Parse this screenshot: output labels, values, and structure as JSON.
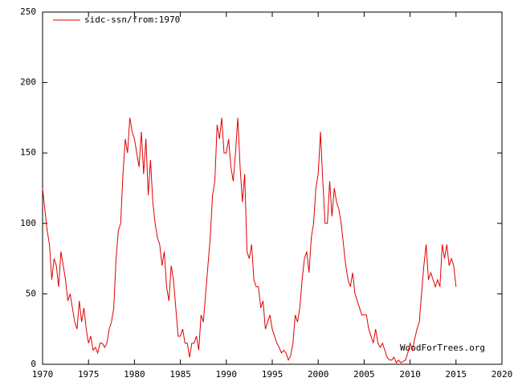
{
  "chart_data": {
    "type": "line",
    "annotation": "WoodForTrees.org",
    "x": [
      1970,
      1970.25,
      1970.5,
      1970.75,
      1971,
      1971.25,
      1971.5,
      1971.75,
      1972,
      1972.25,
      1972.5,
      1972.75,
      1973,
      1973.25,
      1973.5,
      1973.75,
      1974,
      1974.25,
      1974.5,
      1974.75,
      1975,
      1975.25,
      1975.5,
      1975.75,
      1976,
      1976.25,
      1976.5,
      1976.75,
      1977,
      1977.25,
      1977.5,
      1977.75,
      1978,
      1978.25,
      1978.5,
      1978.75,
      1979,
      1979.25,
      1979.5,
      1979.75,
      1980,
      1980.25,
      1980.5,
      1980.75,
      1981,
      1981.25,
      1981.5,
      1981.75,
      1982,
      1982.25,
      1982.5,
      1982.75,
      1983,
      1983.25,
      1983.5,
      1983.75,
      1984,
      1984.25,
      1984.5,
      1984.75,
      1985,
      1985.25,
      1985.5,
      1985.75,
      1986,
      1986.25,
      1986.5,
      1986.75,
      1987,
      1987.25,
      1987.5,
      1987.75,
      1988,
      1988.25,
      1988.5,
      1988.75,
      1989,
      1989.25,
      1989.5,
      1989.75,
      1990,
      1990.25,
      1990.5,
      1990.75,
      1991,
      1991.25,
      1991.5,
      1991.75,
      1992,
      1992.25,
      1992.5,
      1992.75,
      1993,
      1993.25,
      1993.5,
      1993.75,
      1994,
      1994.25,
      1994.5,
      1994.75,
      1995,
      1995.25,
      1995.5,
      1995.75,
      1996,
      1996.25,
      1996.5,
      1996.75,
      1997,
      1997.25,
      1997.5,
      1997.75,
      1998,
      1998.25,
      1998.5,
      1998.75,
      1999,
      1999.25,
      1999.5,
      1999.75,
      2000,
      2000.25,
      2000.5,
      2000.75,
      2001,
      2001.25,
      2001.5,
      2001.75,
      2002,
      2002.25,
      2002.5,
      2002.75,
      2003,
      2003.25,
      2003.5,
      2003.75,
      2004,
      2004.25,
      2004.5,
      2004.75,
      2005,
      2005.25,
      2005.5,
      2005.75,
      2006,
      2006.25,
      2006.5,
      2006.75,
      2007,
      2007.25,
      2007.5,
      2007.75,
      2008,
      2008.25,
      2008.5,
      2008.75,
      2009,
      2009.25,
      2009.5,
      2009.75,
      2010,
      2010.25,
      2010.5,
      2010.75,
      2011,
      2011.25,
      2011.5,
      2011.75,
      2012,
      2012.25,
      2012.5,
      2012.75,
      2013,
      2013.25,
      2013.5,
      2013.75,
      2014,
      2014.25,
      2014.5,
      2014.75,
      2015
    ],
    "series": [
      {
        "name": "sidc-ssn/from:1970",
        "color": "#e00000",
        "values": [
          125,
          110,
          95,
          85,
          60,
          75,
          70,
          55,
          80,
          70,
          60,
          45,
          50,
          40,
          30,
          25,
          45,
          30,
          40,
          25,
          15,
          20,
          10,
          12,
          8,
          15,
          15,
          12,
          15,
          25,
          30,
          40,
          75,
          95,
          100,
          135,
          160,
          150,
          175,
          165,
          160,
          150,
          140,
          165,
          135,
          160,
          120,
          145,
          115,
          100,
          90,
          85,
          70,
          80,
          55,
          45,
          70,
          60,
          40,
          20,
          20,
          25,
          15,
          15,
          5,
          15,
          15,
          20,
          10,
          35,
          30,
          50,
          70,
          90,
          120,
          130,
          170,
          160,
          175,
          150,
          150,
          160,
          140,
          130,
          150,
          175,
          140,
          115,
          135,
          80,
          75,
          85,
          60,
          55,
          55,
          40,
          45,
          25,
          30,
          35,
          25,
          20,
          15,
          12,
          8,
          10,
          8,
          3,
          6,
          15,
          35,
          30,
          40,
          60,
          75,
          80,
          65,
          90,
          100,
          125,
          135,
          165,
          130,
          100,
          100,
          130,
          105,
          125,
          115,
          110,
          100,
          85,
          70,
          60,
          55,
          65,
          50,
          45,
          40,
          35,
          35,
          35,
          25,
          20,
          15,
          25,
          15,
          12,
          15,
          10,
          5,
          3,
          3,
          5,
          1,
          3,
          1,
          2,
          3,
          8,
          15,
          10,
          18,
          25,
          30,
          50,
          70,
          85,
          60,
          65,
          60,
          55,
          60,
          55,
          85,
          75,
          85,
          70,
          75,
          70,
          55
        ]
      }
    ],
    "xlim": [
      1970,
      2020
    ],
    "ylim": [
      0,
      250
    ],
    "xticks": [
      1970,
      1975,
      1980,
      1985,
      1990,
      1995,
      2000,
      2005,
      2010,
      2015,
      2020
    ],
    "yticks": [
      0,
      50,
      100,
      150,
      200,
      250
    ],
    "legend": "top-left"
  }
}
